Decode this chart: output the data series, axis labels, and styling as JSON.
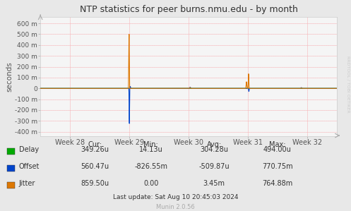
{
  "title": "NTP statistics for peer burns.nmu.edu - by month",
  "ylabel": "seconds",
  "bg_color": "#e8e8e8",
  "plot_bg_color": "#f5f5f5",
  "grid_color": "#ffaaaa",
  "grid_color_minor": "#ddddee",
  "ylim": [
    -440,
    660
  ],
  "yticks": [
    -400,
    -300,
    -200,
    -100,
    0,
    100,
    200,
    300,
    400,
    500,
    600
  ],
  "ytick_labels": [
    "-400 m",
    "-300 m",
    "-200 m",
    "-100 m",
    "0",
    "100 m",
    "200 m",
    "300 m",
    "400 m",
    "500 m",
    "600 m"
  ],
  "xlim": [
    0,
    100
  ],
  "xticks": [
    10,
    30,
    50,
    70,
    90
  ],
  "xtick_labels": [
    "Week 28",
    "Week 29",
    "Week 30",
    "Week 31",
    "Week 32"
  ],
  "delay_color": "#00aa00",
  "offset_color": "#0044cc",
  "jitter_color": "#dd7700",
  "legend_entries": [
    "Delay",
    "Offset",
    "Jitter"
  ],
  "stats_header": [
    "Cur:",
    "Min:",
    "Avg:",
    "Max:"
  ],
  "stats_delay": [
    "349.26u",
    "14.13u",
    "304.28u",
    "494.00u"
  ],
  "stats_offset": [
    "560.47u",
    "-826.55m",
    "-509.87u",
    "770.75m"
  ],
  "stats_jitter": [
    "859.50u",
    "0.00",
    "3.45m",
    "764.88m"
  ],
  "last_update": "Last update: Sat Aug 10 20:45:03 2024",
  "munin_version": "Munin 2.0.56",
  "watermark": "RRDTOOL / TOBI OETIKER"
}
